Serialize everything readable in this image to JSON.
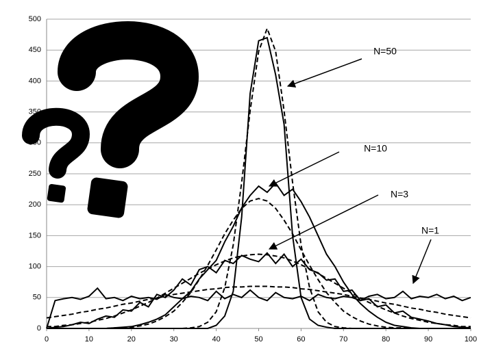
{
  "chart_data": {
    "type": "line",
    "x": [
      0,
      2,
      4,
      6,
      8,
      10,
      12,
      14,
      16,
      18,
      20,
      22,
      24,
      26,
      28,
      30,
      32,
      34,
      36,
      38,
      40,
      42,
      44,
      46,
      48,
      50,
      52,
      54,
      56,
      58,
      60,
      62,
      64,
      66,
      68,
      70,
      72,
      74,
      76,
      78,
      80,
      82,
      84,
      86,
      88,
      90,
      92,
      94,
      96,
      98,
      100
    ],
    "xlim": [
      0,
      100
    ],
    "xticks": [
      0,
      10,
      20,
      30,
      40,
      50,
      60,
      70,
      80,
      90,
      100
    ],
    "ylim": [
      0,
      500
    ],
    "yticks": [
      0,
      50,
      100,
      150,
      200,
      250,
      300,
      350,
      400,
      450,
      500
    ],
    "grid": true,
    "series": [
      {
        "color": "#000000",
        "line_style": "solid",
        "values": [
          0,
          45,
          48,
          50,
          47,
          52,
          65,
          48,
          50,
          45,
          52,
          48,
          50,
          47,
          55,
          50,
          48,
          52,
          50,
          45,
          60,
          48,
          55,
          50,
          62,
          50,
          45,
          58,
          50,
          48,
          52,
          45,
          55,
          50,
          48,
          52,
          50,
          45,
          52,
          55,
          48,
          50,
          60,
          48,
          52,
          50,
          55,
          48,
          52,
          45,
          50
        ]
      },
      {
        "color": "#000000",
        "line_style": "dashed",
        "values": [
          17,
          19,
          21,
          23,
          26,
          28,
          31,
          33,
          36,
          39,
          41,
          44,
          47,
          49,
          52,
          55,
          57,
          59,
          61,
          63,
          64,
          66,
          67,
          67,
          68,
          68,
          68,
          67,
          67,
          66,
          64,
          63,
          61,
          59,
          57,
          55,
          52,
          49,
          47,
          44,
          41,
          39,
          36,
          33,
          31,
          28,
          26,
          23,
          21,
          19,
          17
        ]
      },
      {
        "color": "#000000",
        "line_style": "solid",
        "values": [
          0,
          2,
          3,
          6,
          10,
          8,
          15,
          20,
          18,
          30,
          28,
          42,
          35,
          55,
          50,
          62,
          80,
          70,
          95,
          100,
          90,
          110,
          105,
          118,
          112,
          108,
          122,
          105,
          120,
          100,
          112,
          95,
          90,
          78,
          80,
          60,
          62,
          45,
          48,
          35,
          38,
          25,
          28,
          18,
          15,
          12,
          8,
          6,
          3,
          2,
          1
        ]
      },
      {
        "color": "#000000",
        "line_style": "dashed",
        "values": [
          3,
          3,
          5,
          6,
          8,
          10,
          13,
          16,
          20,
          25,
          30,
          36,
          42,
          49,
          57,
          65,
          73,
          81,
          89,
          96,
          103,
          109,
          114,
          117,
          119,
          120,
          119,
          117,
          114,
          109,
          103,
          96,
          89,
          81,
          73,
          65,
          57,
          49,
          42,
          36,
          30,
          25,
          20,
          16,
          13,
          10,
          8,
          6,
          5,
          3,
          3
        ]
      },
      {
        "color": "#000000",
        "line_style": "solid",
        "values": [
          0,
          0,
          0,
          0,
          0,
          0,
          0,
          0,
          1,
          2,
          3,
          6,
          10,
          15,
          22,
          35,
          48,
          60,
          80,
          95,
          110,
          140,
          165,
          195,
          215,
          230,
          220,
          235,
          215,
          225,
          205,
          180,
          150,
          120,
          100,
          75,
          55,
          40,
          28,
          18,
          10,
          5,
          3,
          1,
          0,
          0,
          0,
          0,
          0,
          0,
          0
        ]
      },
      {
        "color": "#000000",
        "line_style": "dashed",
        "values": [
          0,
          0,
          0,
          0,
          0,
          0,
          0,
          0,
          1,
          1,
          2,
          4,
          7,
          12,
          19,
          28,
          42,
          58,
          79,
          102,
          127,
          153,
          175,
          194,
          206,
          210,
          206,
          194,
          175,
          153,
          127,
          102,
          79,
          58,
          42,
          28,
          19,
          12,
          7,
          4,
          2,
          1,
          1,
          0,
          0,
          0,
          0,
          0,
          0,
          0,
          0
        ]
      },
      {
        "color": "#000000",
        "line_style": "solid",
        "values": [
          0,
          0,
          0,
          0,
          0,
          0,
          0,
          0,
          0,
          0,
          0,
          0,
          0,
          0,
          0,
          0,
          0,
          0,
          0,
          0,
          5,
          20,
          60,
          180,
          380,
          465,
          470,
          410,
          330,
          150,
          50,
          15,
          5,
          2,
          0,
          0,
          0,
          0,
          0,
          0,
          0,
          0,
          0,
          0,
          0,
          0,
          0,
          0,
          0,
          0,
          0
        ]
      },
      {
        "color": "#000000",
        "line_style": "dashed",
        "values": [
          0,
          0,
          0,
          0,
          0,
          0,
          0,
          0,
          0,
          0,
          0,
          0,
          0,
          0,
          0,
          0,
          0,
          1,
          3,
          10,
          27,
          66,
          135,
          236,
          352,
          448,
          485,
          448,
          352,
          236,
          135,
          66,
          27,
          10,
          3,
          1,
          0,
          0,
          0,
          0,
          0,
          0,
          0,
          0,
          0,
          0,
          0,
          0,
          0,
          0,
          0
        ]
      }
    ],
    "annotations": [
      "N=50",
      "N=10",
      "N=3",
      "N=1"
    ]
  }
}
